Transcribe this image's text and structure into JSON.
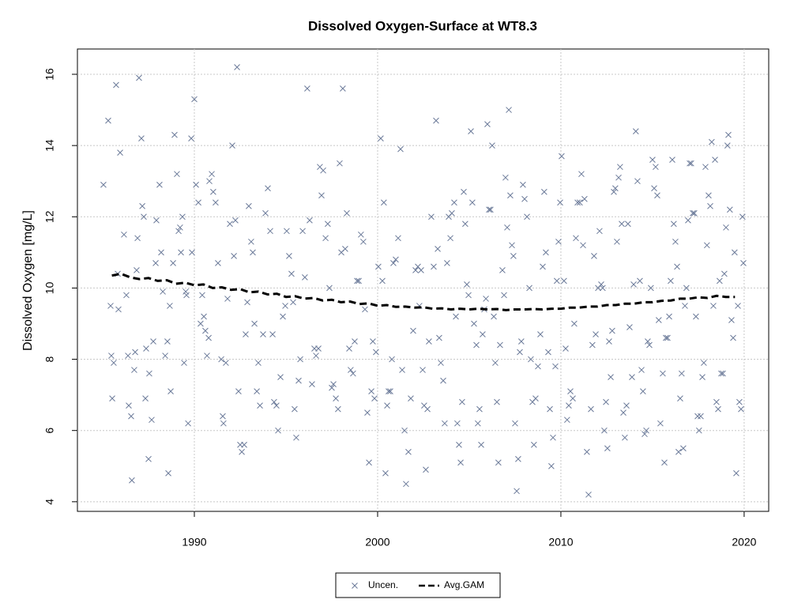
{
  "chart_data": {
    "type": "scatter",
    "title": "Dissolved Oxygen-Surface at WT8.3",
    "y_label": "Dissolved Oxygen [mg/L]",
    "xlim": [
      1983.62,
      2021.34
    ],
    "ylim": [
      3.73,
      16.71
    ],
    "xticks": [
      1990,
      2000,
      2010,
      2020
    ],
    "yticks": [
      4,
      6,
      8,
      10,
      12,
      14,
      16
    ],
    "grid": true,
    "legend": "bottom",
    "series": [
      {
        "name": "Uncen.",
        "type": "scatter",
        "color": "#6b7a99",
        "x": [
          1985.04,
          1985.3,
          1985.43,
          1985.47,
          1985.52,
          1985.6,
          1985.73,
          1985.82,
          1985.86,
          1985.95,
          1986.16,
          1986.29,
          1986.38,
          1986.42,
          1986.55,
          1986.59,
          1986.72,
          1986.77,
          1986.85,
          1986.9,
          1986.98,
          1987.11,
          1987.16,
          1987.24,
          1987.33,
          1987.37,
          1987.5,
          1987.54,
          1987.67,
          1987.76,
          1987.89,
          1987.93,
          1988.1,
          1988.19,
          1988.28,
          1988.41,
          1988.53,
          1988.58,
          1988.66,
          1988.71,
          1988.84,
          1988.92,
          1989.05,
          1989.14,
          1989.22,
          1989.27,
          1989.35,
          1989.44,
          1989.53,
          1989.57,
          1989.66,
          1989.83,
          1989.87,
          1990.0,
          1990.09,
          1990.22,
          1990.34,
          1990.43,
          1990.52,
          1990.6,
          1990.69,
          1990.78,
          1990.82,
          1990.95,
          1991.03,
          1991.16,
          1991.29,
          1991.47,
          1991.55,
          1991.59,
          1991.72,
          1991.81,
          1991.94,
          1992.07,
          1992.16,
          1992.24,
          1992.33,
          1992.41,
          1992.5,
          1992.59,
          1992.72,
          1992.8,
          1992.89,
          1992.97,
          1993.1,
          1993.19,
          1993.28,
          1993.41,
          1993.49,
          1993.58,
          1993.75,
          1993.88,
          1994.01,
          1994.14,
          1994.27,
          1994.35,
          1994.48,
          1994.57,
          1994.7,
          1994.83,
          1994.96,
          1995.04,
          1995.17,
          1995.3,
          1995.39,
          1995.47,
          1995.56,
          1995.69,
          1995.78,
          1995.91,
          1996.03,
          1996.16,
          1996.29,
          1996.42,
          1996.55,
          1996.64,
          1996.77,
          1996.85,
          1996.94,
          1997.03,
          1997.16,
          1997.28,
          1997.37,
          1997.5,
          1997.59,
          1997.72,
          1997.84,
          1997.93,
          1998.02,
          1998.1,
          1998.23,
          1998.32,
          1998.45,
          1998.53,
          1998.66,
          1998.75,
          1998.88,
          1998.97,
          1999.09,
          1999.22,
          1999.31,
          1999.44,
          1999.53,
          1999.66,
          1999.74,
          1999.83,
          1999.91,
          2000.04,
          2000.17,
          2000.26,
          2000.34,
          2000.43,
          2000.52,
          2000.6,
          2000.69,
          2000.78,
          2000.86,
          2000.99,
          2001.12,
          2001.25,
          2001.34,
          2001.47,
          2001.55,
          2001.68,
          2001.81,
          2001.94,
          2002.07,
          2002.2,
          2002.28,
          2002.37,
          2002.46,
          2002.54,
          2002.63,
          2002.72,
          2002.8,
          2002.93,
          2003.06,
          2003.19,
          2003.28,
          2003.36,
          2003.45,
          2003.58,
          2003.66,
          2003.79,
          2003.88,
          2003.97,
          2004.05,
          2004.18,
          2004.27,
          2004.35,
          2004.44,
          2004.53,
          2004.61,
          2004.7,
          2004.78,
          2004.87,
          2004.96,
          2005.09,
          2005.17,
          2005.26,
          2005.39,
          2005.47,
          2005.56,
          2005.65,
          2005.73,
          2005.82,
          2005.91,
          2005.99,
          2006.08,
          2006.16,
          2006.25,
          2006.34,
          2006.42,
          2006.51,
          2006.59,
          2006.68,
          2006.81,
          2006.9,
          2006.98,
          2007.07,
          2007.16,
          2007.24,
          2007.33,
          2007.41,
          2007.5,
          2007.59,
          2007.67,
          2007.76,
          2007.84,
          2007.93,
          2008.02,
          2008.15,
          2008.28,
          2008.36,
          2008.45,
          2008.53,
          2008.62,
          2008.75,
          2008.88,
          2009.01,
          2009.09,
          2009.18,
          2009.31,
          2009.4,
          2009.48,
          2009.57,
          2009.7,
          2009.78,
          2009.87,
          2009.96,
          2010.04,
          2010.17,
          2010.26,
          2010.34,
          2010.43,
          2010.52,
          2010.65,
          2010.73,
          2010.82,
          2010.91,
          2011.03,
          2011.12,
          2011.21,
          2011.29,
          2011.42,
          2011.51,
          2011.64,
          2011.72,
          2011.81,
          2011.9,
          2012.03,
          2012.11,
          2012.2,
          2012.28,
          2012.37,
          2012.46,
          2012.54,
          2012.63,
          2012.72,
          2012.8,
          2012.89,
          2012.97,
          2013.06,
          2013.15,
          2013.23,
          2013.32,
          2013.41,
          2013.49,
          2013.58,
          2013.66,
          2013.75,
          2013.88,
          2013.97,
          2014.09,
          2014.18,
          2014.31,
          2014.4,
          2014.48,
          2014.57,
          2014.66,
          2014.74,
          2014.83,
          2014.91,
          2015.0,
          2015.09,
          2015.17,
          2015.26,
          2015.34,
          2015.43,
          2015.56,
          2015.65,
          2015.73,
          2015.82,
          2015.91,
          2015.99,
          2016.08,
          2016.16,
          2016.25,
          2016.34,
          2016.42,
          2016.51,
          2016.59,
          2016.68,
          2016.77,
          2016.85,
          2016.94,
          2017.03,
          2017.11,
          2017.2,
          2017.28,
          2017.37,
          2017.46,
          2017.54,
          2017.63,
          2017.72,
          2017.8,
          2017.89,
          2017.97,
          2018.06,
          2018.15,
          2018.23,
          2018.32,
          2018.41,
          2018.49,
          2018.58,
          2018.66,
          2018.75,
          2018.84,
          2018.92,
          2019.01,
          2019.09,
          2019.14,
          2019.22,
          2019.31,
          2019.4,
          2019.48,
          2019.57,
          2019.66,
          2019.74,
          2019.83,
          2019.91,
          2019.96
        ],
        "values": [
          12.9,
          14.7,
          9.5,
          8.1,
          6.9,
          7.9,
          15.7,
          10.4,
          9.4,
          13.8,
          11.5,
          9.8,
          8.1,
          6.7,
          6.4,
          4.6,
          7.7,
          8.2,
          10.5,
          11.4,
          15.9,
          14.2,
          12.3,
          12.0,
          6.9,
          8.3,
          5.2,
          7.6,
          6.3,
          8.5,
          10.7,
          11.9,
          12.9,
          11.0,
          9.9,
          8.1,
          8.5,
          4.8,
          9.5,
          7.1,
          10.7,
          14.3,
          13.2,
          11.6,
          11.7,
          11.0,
          12.0,
          7.9,
          9.9,
          9.8,
          6.2,
          14.2,
          11.0,
          15.3,
          12.9,
          12.4,
          9.0,
          9.8,
          9.2,
          8.8,
          8.1,
          8.6,
          13.0,
          13.2,
          12.7,
          12.4,
          10.7,
          8.0,
          6.4,
          6.2,
          7.9,
          9.7,
          11.8,
          14.0,
          10.9,
          11.9,
          16.2,
          7.1,
          5.6,
          5.4,
          5.6,
          8.7,
          9.6,
          12.3,
          11.3,
          11.0,
          9.0,
          7.1,
          7.9,
          6.7,
          8.7,
          12.1,
          12.8,
          11.6,
          8.7,
          6.8,
          6.7,
          6.0,
          7.5,
          9.2,
          9.5,
          11.6,
          10.9,
          10.4,
          9.6,
          6.6,
          5.8,
          7.4,
          8.0,
          11.6,
          10.3,
          15.6,
          11.9,
          7.3,
          8.3,
          8.1,
          8.3,
          13.4,
          12.6,
          13.3,
          11.4,
          11.8,
          10.0,
          7.2,
          7.3,
          6.9,
          6.6,
          13.5,
          11.0,
          15.6,
          11.1,
          12.1,
          8.3,
          7.7,
          7.6,
          8.5,
          10.2,
          10.2,
          11.5,
          11.3,
          9.4,
          6.5,
          5.1,
          7.1,
          8.5,
          6.9,
          8.2,
          10.6,
          14.2,
          10.2,
          12.4,
          4.8,
          6.7,
          7.1,
          7.1,
          8.0,
          10.7,
          10.8,
          11.4,
          13.9,
          7.7,
          6.0,
          4.5,
          5.4,
          6.9,
          8.8,
          10.5,
          10.6,
          9.5,
          10.5,
          7.7,
          6.7,
          4.9,
          6.6,
          8.5,
          12.0,
          10.6,
          14.7,
          11.1,
          8.6,
          7.9,
          7.4,
          6.2,
          10.7,
          12.0,
          11.4,
          12.1,
          12.4,
          9.2,
          6.2,
          5.6,
          5.1,
          6.8,
          12.7,
          11.8,
          10.1,
          9.8,
          14.4,
          12.4,
          9.0,
          8.4,
          6.2,
          6.6,
          5.6,
          8.7,
          9.4,
          9.7,
          14.6,
          12.2,
          12.2,
          14.0,
          9.2,
          7.9,
          6.8,
          5.1,
          8.4,
          10.5,
          9.8,
          13.1,
          11.7,
          15.0,
          12.6,
          11.2,
          10.9,
          6.2,
          4.3,
          5.2,
          8.2,
          8.5,
          12.9,
          12.5,
          12.0,
          10.0,
          8.0,
          6.8,
          5.6,
          6.9,
          7.8,
          8.7,
          10.6,
          12.7,
          11.0,
          8.2,
          6.6,
          5.0,
          5.8,
          7.8,
          10.2,
          11.3,
          12.4,
          13.7,
          10.2,
          8.3,
          6.3,
          6.7,
          7.1,
          6.9,
          9.0,
          11.4,
          12.4,
          12.4,
          13.2,
          11.2,
          12.5,
          5.4,
          4.2,
          6.6,
          8.4,
          10.9,
          8.7,
          10.0,
          11.6,
          10.1,
          10.0,
          6.0,
          6.8,
          5.5,
          8.5,
          7.5,
          8.8,
          12.7,
          12.8,
          11.3,
          13.1,
          13.4,
          11.8,
          6.5,
          5.8,
          6.7,
          11.8,
          8.9,
          7.5,
          10.1,
          14.4,
          13.0,
          10.2,
          7.7,
          7.1,
          5.9,
          6.0,
          8.5,
          8.4,
          10.0,
          13.6,
          12.8,
          13.4,
          12.6,
          9.1,
          6.2,
          7.6,
          5.1,
          8.6,
          8.6,
          9.2,
          10.2,
          13.6,
          11.8,
          11.3,
          10.6,
          5.4,
          6.9,
          7.6,
          5.5,
          9.5,
          10.0,
          11.9,
          13.5,
          13.5,
          12.1,
          12.1,
          9.2,
          6.4,
          6.0,
          6.4,
          7.5,
          7.9,
          13.4,
          11.2,
          12.6,
          12.3,
          14.1,
          9.5,
          13.6,
          6.8,
          6.6,
          10.2,
          7.6,
          7.6,
          10.4,
          11.7,
          14.0,
          14.3,
          12.2,
          9.1,
          8.6,
          11.0,
          4.8,
          9.5,
          6.8,
          6.6,
          12.0,
          10.7
        ]
      },
      {
        "name": "Avg.GAM",
        "type": "line",
        "color": "#000000",
        "dashed": true,
        "x": [
          1985.5,
          1986,
          1986.5,
          1987,
          1987.5,
          1988,
          1988.5,
          1989,
          1989.5,
          1990,
          1990.5,
          1991,
          1991.5,
          1992,
          1992.5,
          1993,
          1993.5,
          1994,
          1994.5,
          1995,
          1995.5,
          1996,
          1996.5,
          1997,
          1997.5,
          1998,
          1998.5,
          1999,
          1999.5,
          2000,
          2000.5,
          2001,
          2001.5,
          2002,
          2002.5,
          2003,
          2003.5,
          2004,
          2004.5,
          2005,
          2005.5,
          2006,
          2006.5,
          2007,
          2007.5,
          2008,
          2008.5,
          2009,
          2009.5,
          2010,
          2010.5,
          2011,
          2011.5,
          2012,
          2012.5,
          2013,
          2013.5,
          2014,
          2014.5,
          2015,
          2015.5,
          2016,
          2016.5,
          2017,
          2017.5,
          2018,
          2018.5,
          2019,
          2019.5
        ],
        "values": [
          10.35,
          10.4,
          10.3,
          10.25,
          10.28,
          10.2,
          10.22,
          10.12,
          10.15,
          10.08,
          10.1,
          10.0,
          10.02,
          9.95,
          9.97,
          9.88,
          9.9,
          9.82,
          9.84,
          9.75,
          9.77,
          9.7,
          9.72,
          9.65,
          9.67,
          9.6,
          9.62,
          9.55,
          9.57,
          9.5,
          9.52,
          9.47,
          9.48,
          9.45,
          9.46,
          9.42,
          9.43,
          9.4,
          9.42,
          9.4,
          9.42,
          9.4,
          9.41,
          9.38,
          9.4,
          9.4,
          9.41,
          9.4,
          9.42,
          9.42,
          9.45,
          9.45,
          9.48,
          9.48,
          9.52,
          9.52,
          9.56,
          9.56,
          9.6,
          9.6,
          9.64,
          9.65,
          9.7,
          9.7,
          9.74,
          9.72,
          9.78,
          9.75,
          9.75
        ]
      }
    ]
  }
}
